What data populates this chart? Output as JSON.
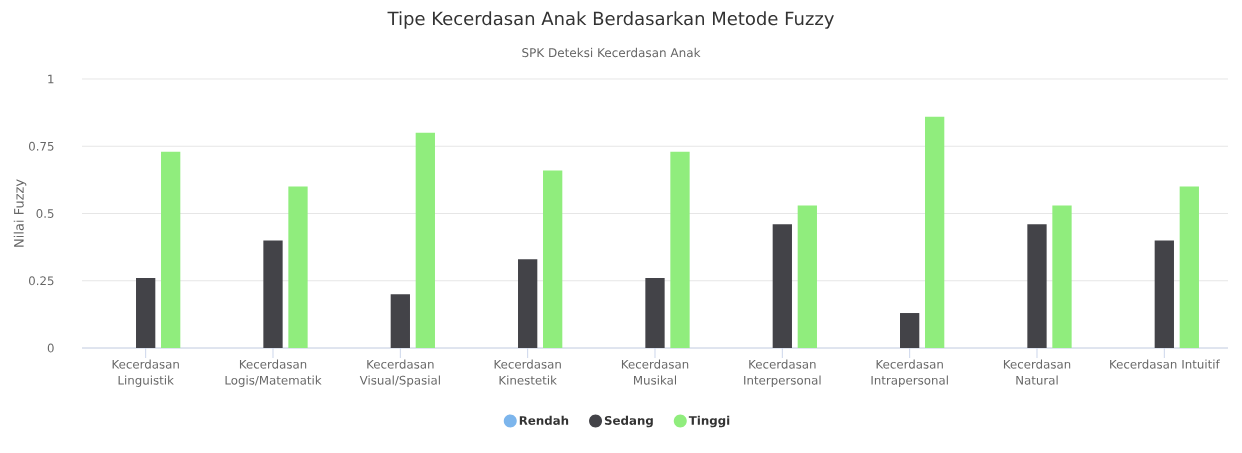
{
  "chart_data": {
    "type": "bar",
    "title": "Tipe Kecerdasan Anak Berdasarkan Metode Fuzzy",
    "subtitle": "SPK Deteksi Kecerdasan Anak",
    "ylabel": "Nilai Fuzzy",
    "categories": [
      "Kecerdasan Linguistik",
      "Kecerdasan Logis/Matematik",
      "Kecerdasan Visual/Spasial",
      "Kecerdasan Kinestetik",
      "Kecerdasan Musikal",
      "Kecerdasan Interpersonal",
      "Kecerdasan Intrapersonal",
      "Kecerdasan Natural",
      "Kecerdasan Intuitif"
    ],
    "series": [
      {
        "name": "Rendah",
        "color": "#7cb5ec",
        "values": [
          0,
          0,
          0,
          0,
          0,
          0,
          0,
          0,
          0
        ]
      },
      {
        "name": "Sedang",
        "color": "#434348",
        "values": [
          0.26,
          0.4,
          0.2,
          0.33,
          0.26,
          0.46,
          0.13,
          0.46,
          0.4
        ]
      },
      {
        "name": "Tinggi",
        "color": "#90ed7d",
        "values": [
          0.73,
          0.6,
          0.8,
          0.66,
          0.73,
          0.53,
          0.86,
          0.53,
          0.6
        ]
      }
    ],
    "ylim": [
      0,
      1
    ],
    "yticks": [
      0,
      0.25,
      0.5,
      0.75,
      1
    ],
    "grid": "y",
    "legend": "bottom"
  }
}
